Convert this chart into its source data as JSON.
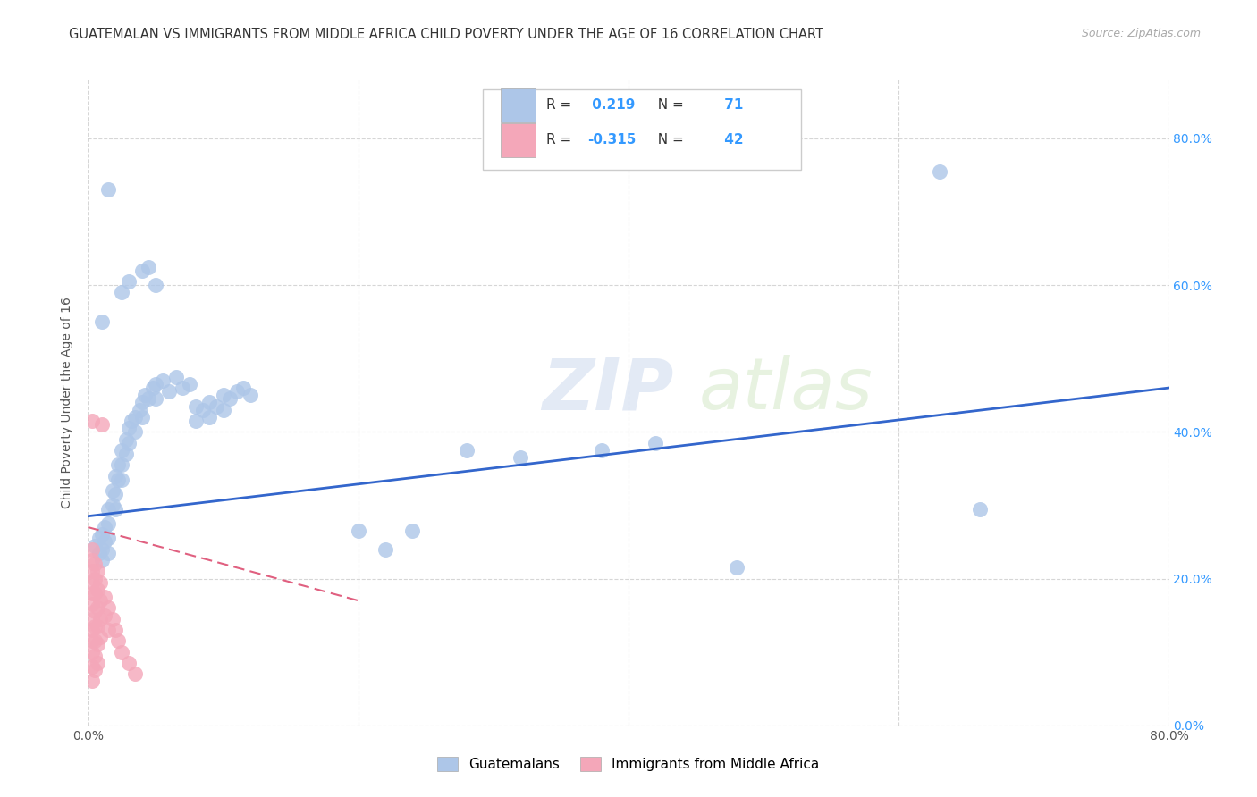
{
  "title": "GUATEMALAN VS IMMIGRANTS FROM MIDDLE AFRICA CHILD POVERTY UNDER THE AGE OF 16 CORRELATION CHART",
  "source": "Source: ZipAtlas.com",
  "ylabel": "Child Poverty Under the Age of 16",
  "watermark_line1": "ZIP",
  "watermark_line2": "atlas",
  "xlim": [
    0.0,
    0.8
  ],
  "ylim": [
    0.0,
    0.88
  ],
  "yticks": [
    0.0,
    0.2,
    0.4,
    0.6,
    0.8
  ],
  "ytick_labels": [
    "0.0%",
    "20.0%",
    "40.0%",
    "60.0%",
    "80.0%"
  ],
  "xtick_labels_left": [
    "0.0%",
    "",
    "",
    "",
    "80.0%"
  ],
  "blue_R": "0.219",
  "blue_N": "71",
  "pink_R": "-0.315",
  "pink_N": "42",
  "blue_color": "#adc6e8",
  "pink_color": "#f4a7b9",
  "blue_line_color": "#3366cc",
  "pink_line_color": "#e06080",
  "right_tick_color": "#3399ff",
  "legend_label_blue": "Guatemalans",
  "legend_label_pink": "Immigrants from Middle Africa",
  "blue_scatter": [
    [
      0.005,
      0.245
    ],
    [
      0.008,
      0.255
    ],
    [
      0.008,
      0.235
    ],
    [
      0.01,
      0.26
    ],
    [
      0.01,
      0.24
    ],
    [
      0.01,
      0.225
    ],
    [
      0.012,
      0.27
    ],
    [
      0.012,
      0.25
    ],
    [
      0.015,
      0.295
    ],
    [
      0.015,
      0.275
    ],
    [
      0.015,
      0.255
    ],
    [
      0.015,
      0.235
    ],
    [
      0.018,
      0.32
    ],
    [
      0.018,
      0.3
    ],
    [
      0.02,
      0.34
    ],
    [
      0.02,
      0.315
    ],
    [
      0.02,
      0.295
    ],
    [
      0.022,
      0.355
    ],
    [
      0.022,
      0.335
    ],
    [
      0.025,
      0.375
    ],
    [
      0.025,
      0.355
    ],
    [
      0.025,
      0.335
    ],
    [
      0.028,
      0.39
    ],
    [
      0.028,
      0.37
    ],
    [
      0.03,
      0.405
    ],
    [
      0.03,
      0.385
    ],
    [
      0.032,
      0.415
    ],
    [
      0.035,
      0.42
    ],
    [
      0.035,
      0.4
    ],
    [
      0.038,
      0.43
    ],
    [
      0.04,
      0.44
    ],
    [
      0.04,
      0.42
    ],
    [
      0.042,
      0.45
    ],
    [
      0.045,
      0.445
    ],
    [
      0.048,
      0.46
    ],
    [
      0.05,
      0.465
    ],
    [
      0.05,
      0.445
    ],
    [
      0.055,
      0.47
    ],
    [
      0.06,
      0.455
    ],
    [
      0.065,
      0.475
    ],
    [
      0.07,
      0.46
    ],
    [
      0.075,
      0.465
    ],
    [
      0.08,
      0.435
    ],
    [
      0.08,
      0.415
    ],
    [
      0.085,
      0.43
    ],
    [
      0.09,
      0.44
    ],
    [
      0.09,
      0.42
    ],
    [
      0.095,
      0.435
    ],
    [
      0.1,
      0.45
    ],
    [
      0.1,
      0.43
    ],
    [
      0.105,
      0.445
    ],
    [
      0.11,
      0.455
    ],
    [
      0.115,
      0.46
    ],
    [
      0.12,
      0.45
    ],
    [
      0.01,
      0.55
    ],
    [
      0.025,
      0.59
    ],
    [
      0.03,
      0.605
    ],
    [
      0.04,
      0.62
    ],
    [
      0.045,
      0.625
    ],
    [
      0.05,
      0.6
    ],
    [
      0.015,
      0.73
    ],
    [
      0.2,
      0.265
    ],
    [
      0.22,
      0.24
    ],
    [
      0.24,
      0.265
    ],
    [
      0.28,
      0.375
    ],
    [
      0.32,
      0.365
    ],
    [
      0.38,
      0.375
    ],
    [
      0.42,
      0.385
    ],
    [
      0.48,
      0.215
    ],
    [
      0.63,
      0.755
    ],
    [
      0.66,
      0.295
    ]
  ],
  "pink_scatter": [
    [
      0.003,
      0.24
    ],
    [
      0.003,
      0.225
    ],
    [
      0.003,
      0.21
    ],
    [
      0.003,
      0.195
    ],
    [
      0.003,
      0.18
    ],
    [
      0.003,
      0.165
    ],
    [
      0.003,
      0.145
    ],
    [
      0.003,
      0.13
    ],
    [
      0.003,
      0.115
    ],
    [
      0.003,
      0.1
    ],
    [
      0.003,
      0.08
    ],
    [
      0.003,
      0.06
    ],
    [
      0.005,
      0.22
    ],
    [
      0.005,
      0.2
    ],
    [
      0.005,
      0.18
    ],
    [
      0.005,
      0.155
    ],
    [
      0.005,
      0.135
    ],
    [
      0.005,
      0.115
    ],
    [
      0.005,
      0.095
    ],
    [
      0.005,
      0.075
    ],
    [
      0.007,
      0.21
    ],
    [
      0.007,
      0.185
    ],
    [
      0.007,
      0.16
    ],
    [
      0.007,
      0.135
    ],
    [
      0.007,
      0.11
    ],
    [
      0.007,
      0.085
    ],
    [
      0.009,
      0.195
    ],
    [
      0.009,
      0.17
    ],
    [
      0.009,
      0.145
    ],
    [
      0.009,
      0.12
    ],
    [
      0.012,
      0.175
    ],
    [
      0.012,
      0.15
    ],
    [
      0.015,
      0.16
    ],
    [
      0.015,
      0.13
    ],
    [
      0.018,
      0.145
    ],
    [
      0.02,
      0.13
    ],
    [
      0.022,
      0.115
    ],
    [
      0.025,
      0.1
    ],
    [
      0.03,
      0.085
    ],
    [
      0.035,
      0.07
    ],
    [
      0.003,
      0.415
    ],
    [
      0.01,
      0.41
    ]
  ],
  "blue_line_x": [
    0.0,
    0.8
  ],
  "blue_line_y": [
    0.285,
    0.46
  ],
  "pink_line_x": [
    0.0,
    0.2
  ],
  "pink_line_y": [
    0.27,
    0.17
  ],
  "background_color": "#ffffff",
  "grid_color": "#cccccc"
}
